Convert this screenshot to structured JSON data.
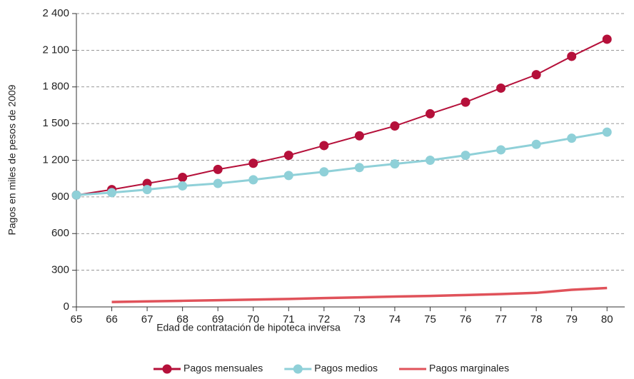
{
  "chart_data": {
    "type": "line",
    "xlabel": "Edad de contratación de hipoteca inversa",
    "ylabel": "Pagos en miles de pesos de 2009",
    "x": [
      65,
      66,
      67,
      68,
      69,
      70,
      71,
      72,
      73,
      74,
      75,
      76,
      77,
      78,
      79,
      80
    ],
    "series": [
      {
        "name": "Pagos mensuales",
        "color": "#b5103a",
        "marker": true,
        "values": [
          915,
          960,
          1010,
          1060,
          1125,
          1175,
          1240,
          1320,
          1400,
          1480,
          1580,
          1675,
          1790,
          1900,
          2050,
          2190
        ]
      },
      {
        "name": "Pagos medios",
        "color": "#8fd0d8",
        "marker": true,
        "values": [
          915,
          935,
          960,
          990,
          1010,
          1040,
          1075,
          1105,
          1140,
          1170,
          1200,
          1240,
          1285,
          1330,
          1380,
          1430
        ]
      },
      {
        "name": "Pagos marginales",
        "color": "#e0525a",
        "marker": false,
        "values": [
          null,
          40,
          45,
          50,
          55,
          60,
          65,
          72,
          78,
          85,
          90,
          97,
          105,
          115,
          140,
          155
        ]
      }
    ],
    "xlim": [
      65,
      80.5
    ],
    "xticks": [
      65,
      66,
      67,
      68,
      69,
      70,
      71,
      72,
      73,
      74,
      75,
      76,
      77,
      78,
      79,
      80
    ],
    "ylim": [
      0,
      2400
    ],
    "yticks": [
      0,
      300,
      600,
      900,
      {
        "value": 1200,
        "label": "1 200"
      },
      {
        "value": 1500,
        "label": "1 500"
      },
      {
        "value": 1800,
        "label": "1 800"
      },
      {
        "value": 2100,
        "label": "2 100"
      },
      {
        "value": 2400,
        "label": "2 400"
      }
    ],
    "grid": true,
    "legend": "bottom"
  }
}
